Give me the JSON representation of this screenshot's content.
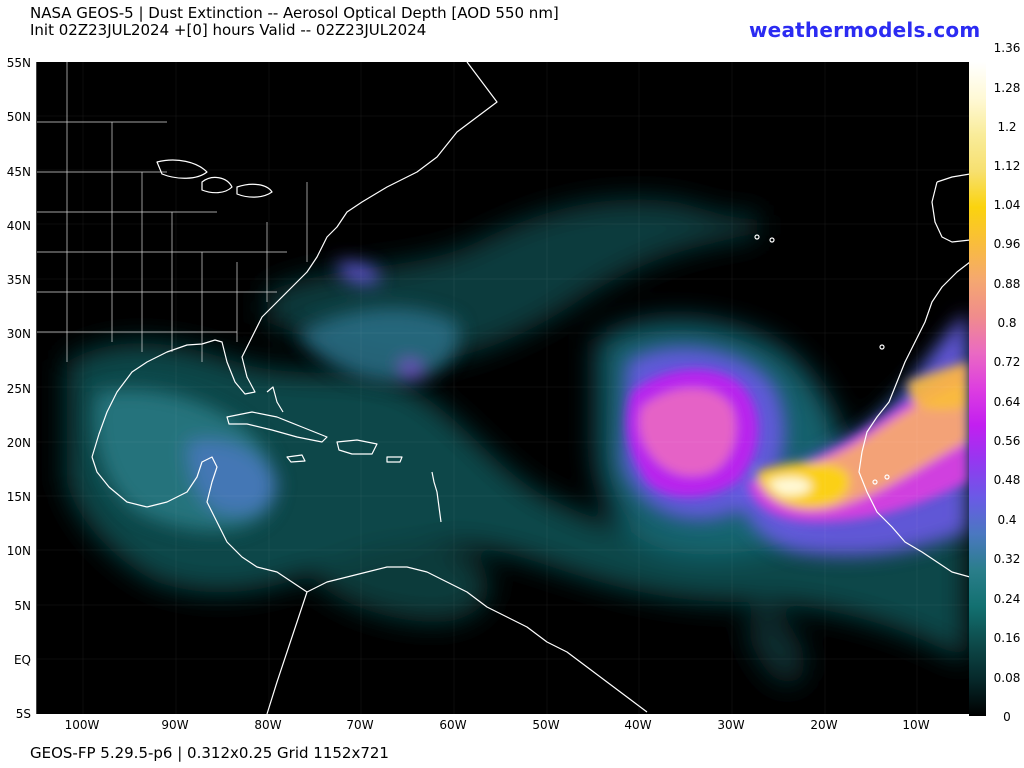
{
  "header": {
    "title_line1": "NASA GEOS-5 | Dust Extinction -- Aerosol Optical Depth [AOD 550 nm]",
    "title_line2": "Init 02Z23JUL2024 +[0] hours Valid -- 02Z23JUL2024",
    "brand": "weathermodels.com",
    "brand_color": "#2b2bf2"
  },
  "map": {
    "region": "North Atlantic / Caribbean / West Africa",
    "background_color": "#000000",
    "coastline_color": "#ffffff",
    "lat_labels": [
      "55N",
      "50N",
      "45N",
      "40N",
      "35N",
      "30N",
      "25N",
      "20N",
      "15N",
      "10N",
      "5N",
      "EQ",
      "5S"
    ],
    "lon_labels": [
      "100W",
      "90W",
      "80W",
      "70W",
      "60W",
      "50W",
      "40W",
      "30W",
      "20W",
      "10W"
    ]
  },
  "colorbar": {
    "label_values": [
      "1.36",
      "1.28",
      "1.2",
      "1.12",
      "1.04",
      "0.96",
      "0.88",
      "0.8",
      "0.72",
      "0.64",
      "0.56",
      "0.48",
      "0.4",
      "0.32",
      "0.24",
      "0.16",
      "0.08",
      "0"
    ],
    "min": 0,
    "max": 1.36,
    "colors": [
      "#000000",
      "#06282a",
      "#0d4a4a",
      "#127070",
      "#2a7e8a",
      "#4a78c0",
      "#6a5ae6",
      "#9438f0",
      "#c21ff0",
      "#dd3ee0",
      "#ea6ac2",
      "#f08c8c",
      "#f5a870",
      "#f9bd3c",
      "#fbd30e",
      "#f7e070",
      "#f9ec9a",
      "#fff9d6",
      "#ffffff"
    ]
  },
  "footer": {
    "text": "GEOS-FP 5.29.5-p6 | 0.312x0.25 Grid 1152x721"
  }
}
